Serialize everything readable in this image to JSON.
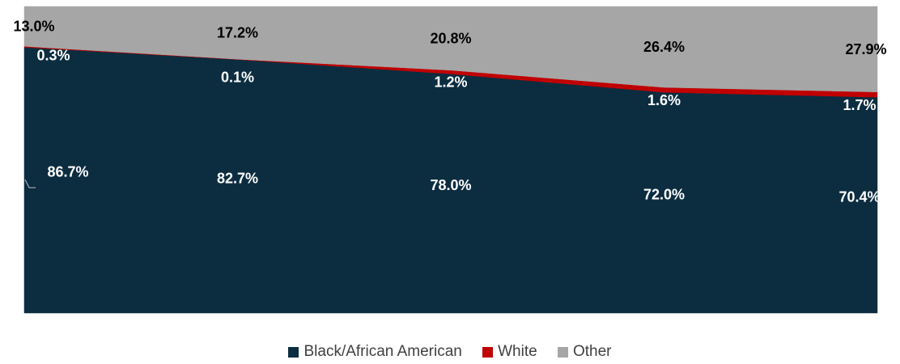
{
  "chart_data": {
    "type": "area",
    "stacked": true,
    "percent": true,
    "categories": [
      "",
      "",
      "",
      "",
      ""
    ],
    "ylim": [
      0,
      100
    ],
    "series": [
      {
        "name": "Black/African American",
        "values": [
          86.7,
          82.7,
          78.0,
          72.0,
          70.4
        ],
        "labels": [
          "86.7%",
          "82.7%",
          "78.0%",
          "72.0%",
          "70.4%"
        ],
        "color": "#0c2d40",
        "label_color": "#ffffff"
      },
      {
        "name": "White",
        "values": [
          0.3,
          0.1,
          1.2,
          1.6,
          1.7
        ],
        "labels": [
          "0.3%",
          "0.1%",
          "1.2%",
          "1.6%",
          "1.7%"
        ],
        "color": "#c00000",
        "label_color": "#ffffff"
      },
      {
        "name": "Other",
        "values": [
          13.0,
          17.2,
          20.8,
          26.4,
          27.9
        ],
        "labels": [
          "13.0%",
          "17.2%",
          "20.8%",
          "26.4%",
          "27.9%"
        ],
        "color": "#a6a6a6",
        "label_color": "#000000"
      }
    ],
    "legend": {
      "position": "bottom"
    },
    "grid": false
  }
}
